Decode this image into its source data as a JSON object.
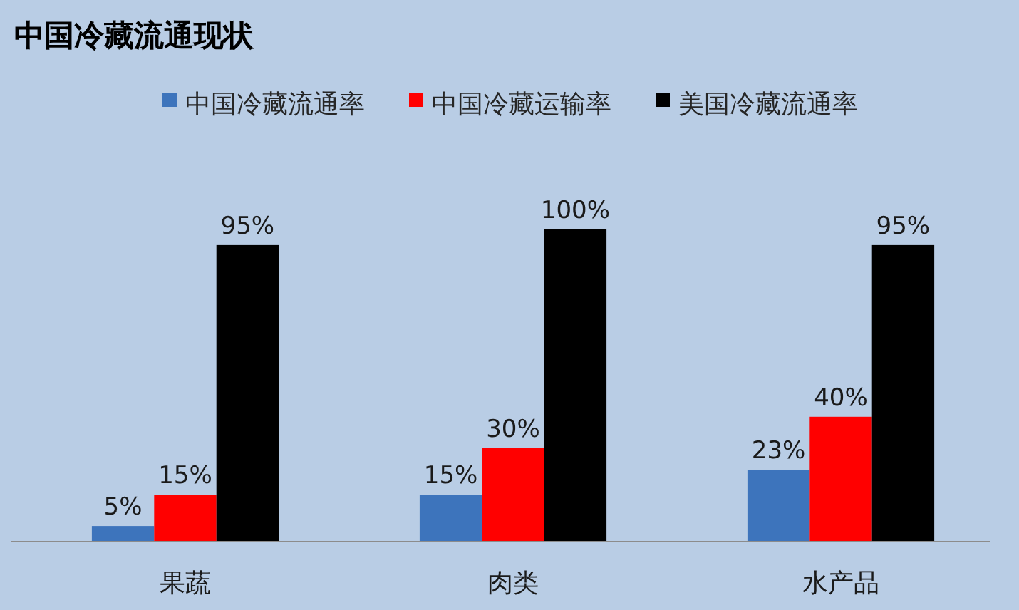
{
  "chart_data": {
    "type": "bar",
    "title": "中国冷藏流通现状",
    "legend": "top",
    "categories": [
      "果蔬",
      "肉类",
      "水产品"
    ],
    "series": [
      {
        "name": "中国冷藏流通率",
        "color": "#3d74bc",
        "values": [
          5,
          15,
          23
        ],
        "value_labels": [
          "5%",
          "15%",
          "23%"
        ]
      },
      {
        "name": "中国冷藏运输率",
        "color": "#ff0000",
        "values": [
          15,
          30,
          40
        ],
        "value_labels": [
          "15%",
          "30%",
          "40%"
        ]
      },
      {
        "name": "美国冷藏流通率",
        "color": "#000000",
        "values": [
          95,
          100,
          95
        ],
        "value_labels": [
          "95%",
          "100%",
          "95%"
        ]
      }
    ]
  }
}
